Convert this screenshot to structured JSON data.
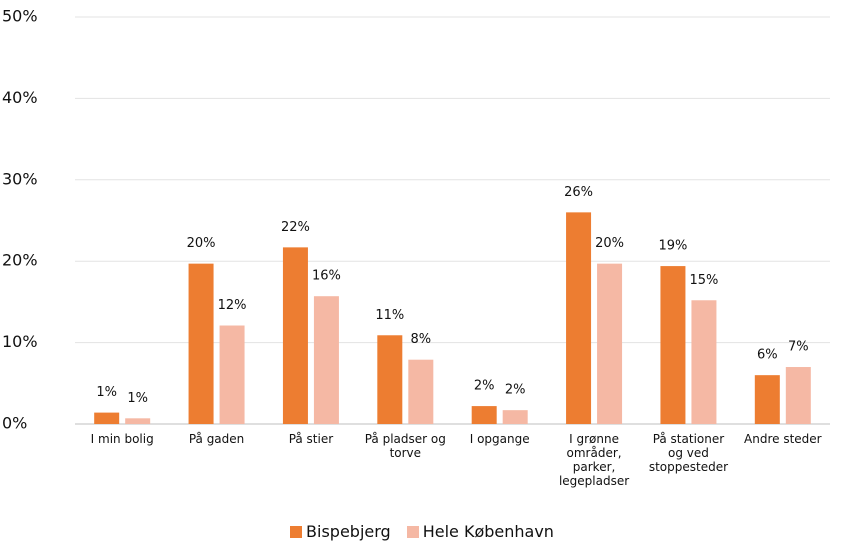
{
  "chart_data": {
    "type": "bar",
    "categories": [
      "I min bolig",
      "På gaden",
      "På stier",
      "På pladser og torve",
      "I opgange",
      "I grønne områder, parker, legepladser",
      "På stationer og ved stoppesteder",
      "Andre steder"
    ],
    "series": [
      {
        "name": "Bispebjerg",
        "color": "#ED7D31",
        "values": [
          1.4,
          19.7,
          21.7,
          10.9,
          2.2,
          26.0,
          19.4,
          6.0
        ],
        "value_labels": [
          "1%",
          "20%",
          "22%",
          "11%",
          "2%",
          "26%",
          "19%",
          "6%"
        ]
      },
      {
        "name": "Hele København",
        "color": "#F5B8A4",
        "values": [
          0.7,
          12.1,
          15.7,
          7.9,
          1.7,
          19.7,
          15.2,
          7.0
        ],
        "value_labels": [
          "1%",
          "12%",
          "16%",
          "8%",
          "2%",
          "20%",
          "15%",
          "7%"
        ]
      }
    ],
    "ylim": [
      0,
      50
    ],
    "yticks": [
      {
        "value": 0,
        "label": "0%"
      },
      {
        "value": 10,
        "label": "10%"
      },
      {
        "value": 20,
        "label": "20%"
      },
      {
        "value": 30,
        "label": "30%"
      },
      {
        "value": 40,
        "label": "40%"
      },
      {
        "value": 50,
        "label": "50%"
      }
    ],
    "grid": true,
    "legend": "bottom"
  }
}
